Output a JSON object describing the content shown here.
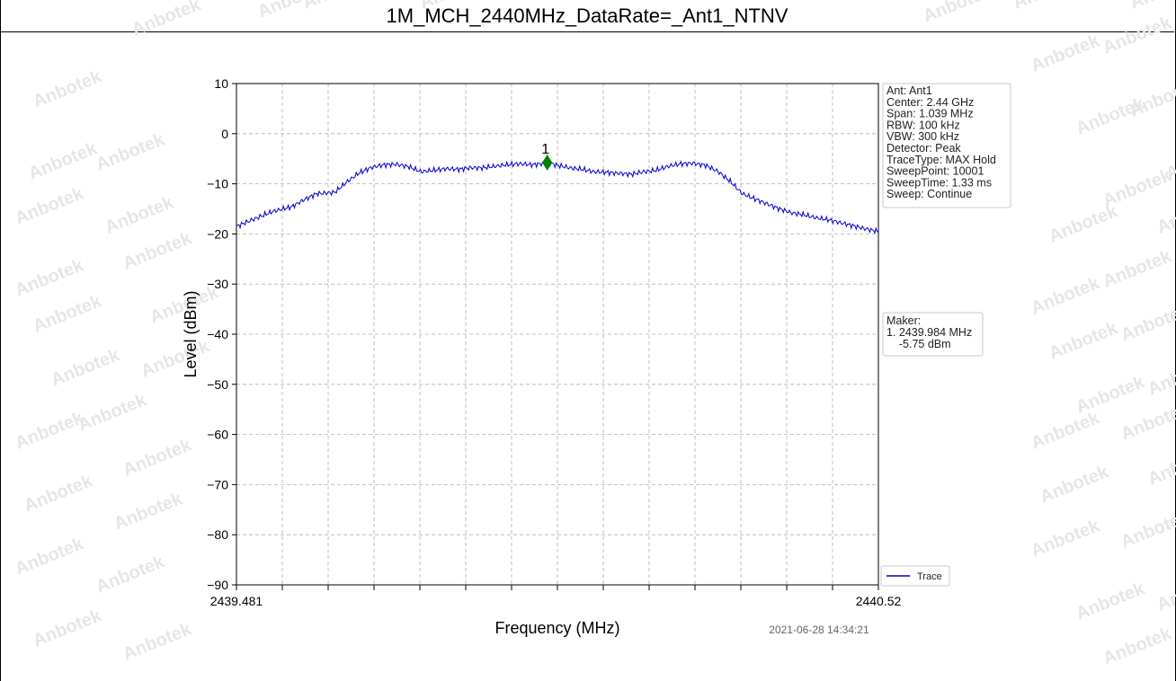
{
  "title": "1M_MCH_2440MHz_DataRate=_Ant1_NTNV",
  "watermark": "Anbotek",
  "timestamp": "2021-06-28 14:34:21",
  "info_lines": [
    "Ant: Ant1",
    "Center: 2.44 GHz",
    "Span: 1.039 MHz",
    "RBW: 100 kHz",
    "VBW: 300 kHz",
    "Detector: Peak",
    "TraceType: MAX Hold",
    "SweepPoint: 10001",
    "SweepTime: 1.33 ms",
    "Sweep: Continue"
  ],
  "marker_lines": [
    "Maker:",
    "1. 2439.984 MHz",
    "    -5.75 dBm"
  ],
  "chart_data": {
    "type": "line",
    "xlabel": "Frequency (MHz)",
    "ylabel": "Level (dBm)",
    "xlim": [
      2439.481,
      2440.52
    ],
    "ylim": [
      -90,
      10
    ],
    "x_tick_labels": [
      "2439.481",
      "2440.52"
    ],
    "x_minor_ticks": 14,
    "y_ticks": [
      10,
      0,
      -10,
      -20,
      -30,
      -40,
      -50,
      -60,
      -70,
      -80,
      -90
    ],
    "grid": true,
    "legend": {
      "position": "lower-right",
      "entries": [
        "Trace"
      ]
    },
    "colors": {
      "trace": "#0000cc",
      "marker": "#008000"
    },
    "series": [
      {
        "name": "Trace",
        "x": [
          2439.481,
          2439.51,
          2439.54,
          2439.57,
          2439.59,
          2439.61,
          2439.64,
          2439.66,
          2439.68,
          2439.7,
          2439.72,
          2439.74,
          2439.76,
          2439.78,
          2439.8,
          2439.82,
          2439.84,
          2439.86,
          2439.88,
          2439.9,
          2439.92,
          2439.94,
          2439.96,
          2439.98,
          2439.984,
          2440.0,
          2440.02,
          2440.04,
          2440.06,
          2440.08,
          2440.1,
          2440.12,
          2440.14,
          2440.16,
          2440.18,
          2440.2,
          2440.22,
          2440.24,
          2440.26,
          2440.28,
          2440.3,
          2440.32,
          2440.34,
          2440.36,
          2440.38,
          2440.4,
          2440.42,
          2440.44,
          2440.46,
          2440.48,
          2440.5,
          2440.52
        ],
        "y": [
          -18.5,
          -17.0,
          -15.5,
          -14.6,
          -13.2,
          -12.0,
          -11.7,
          -9.6,
          -7.8,
          -6.7,
          -6.2,
          -6.1,
          -6.6,
          -7.6,
          -7.3,
          -7.0,
          -7.1,
          -6.8,
          -6.8,
          -6.5,
          -6.2,
          -6.0,
          -6.2,
          -5.9,
          -5.75,
          -6.3,
          -6.8,
          -7.1,
          -7.6,
          -7.7,
          -7.9,
          -8.1,
          -7.6,
          -7.3,
          -6.5,
          -6.0,
          -5.9,
          -6.3,
          -7.5,
          -9.5,
          -12.0,
          -13.0,
          -14.0,
          -15.0,
          -15.8,
          -16.2,
          -16.8,
          -17.2,
          -17.8,
          -18.4,
          -19.0,
          -19.5
        ]
      }
    ],
    "marker": {
      "label": "1",
      "x": 2439.984,
      "y": -5.75
    }
  }
}
